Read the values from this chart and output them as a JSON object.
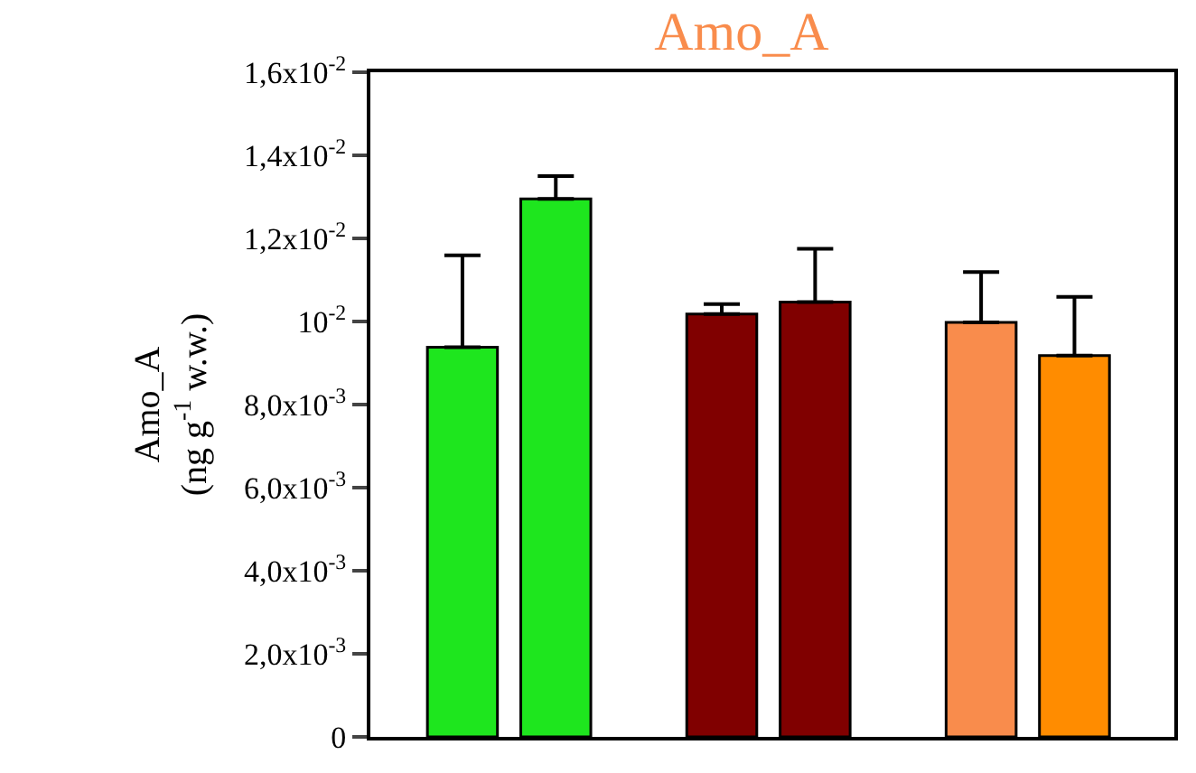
{
  "chart_data": {
    "type": "bar",
    "title": "Amo_A",
    "ylabel": "Amo_A\n(ng g$^{-1}$ w.w.)",
    "categories": [
      null,
      null,
      null
    ],
    "series": [
      {
        "colors": [
          "#1ee61e",
          "#800000",
          "#f98c4c"
        ],
        "values": [
          0.00938,
          0.01018,
          0.00998
        ],
        "errors": [
          [
            0.00938,
            0.01159
          ],
          [
            0.01018,
            0.01042
          ],
          [
            0.00998,
            0.01119
          ]
        ]
      },
      {
        "colors": [
          "#1ee61e",
          "#800000",
          "#ff8c00"
        ],
        "values": [
          0.01295,
          0.01047,
          0.00918
        ],
        "errors": [
          [
            0.01295,
            0.0135
          ],
          [
            0.01047,
            0.01175
          ],
          [
            0.00918,
            0.01059
          ]
        ]
      }
    ],
    "ylim": [
      0,
      0.016
    ],
    "yticks": [
      {
        "value": 0,
        "label": "0"
      },
      {
        "value": 0.002,
        "label": "2,0x10$^{-3}$"
      },
      {
        "value": 0.004,
        "label": "4,0x10$^{-3}$"
      },
      {
        "value": 0.006,
        "label": "6,0x10$^{-3}$"
      },
      {
        "value": 0.008,
        "label": "8,0x10$^{-3}$"
      },
      {
        "value": 0.01,
        "label": "10$^{-2}$"
      },
      {
        "value": 0.012,
        "label": "1,2x10$^{-2}$"
      },
      {
        "value": 0.014,
        "label": "1,4x10$^{-2}$"
      },
      {
        "value": 0.016,
        "label": "1,6x10$^{-2}$"
      }
    ]
  }
}
